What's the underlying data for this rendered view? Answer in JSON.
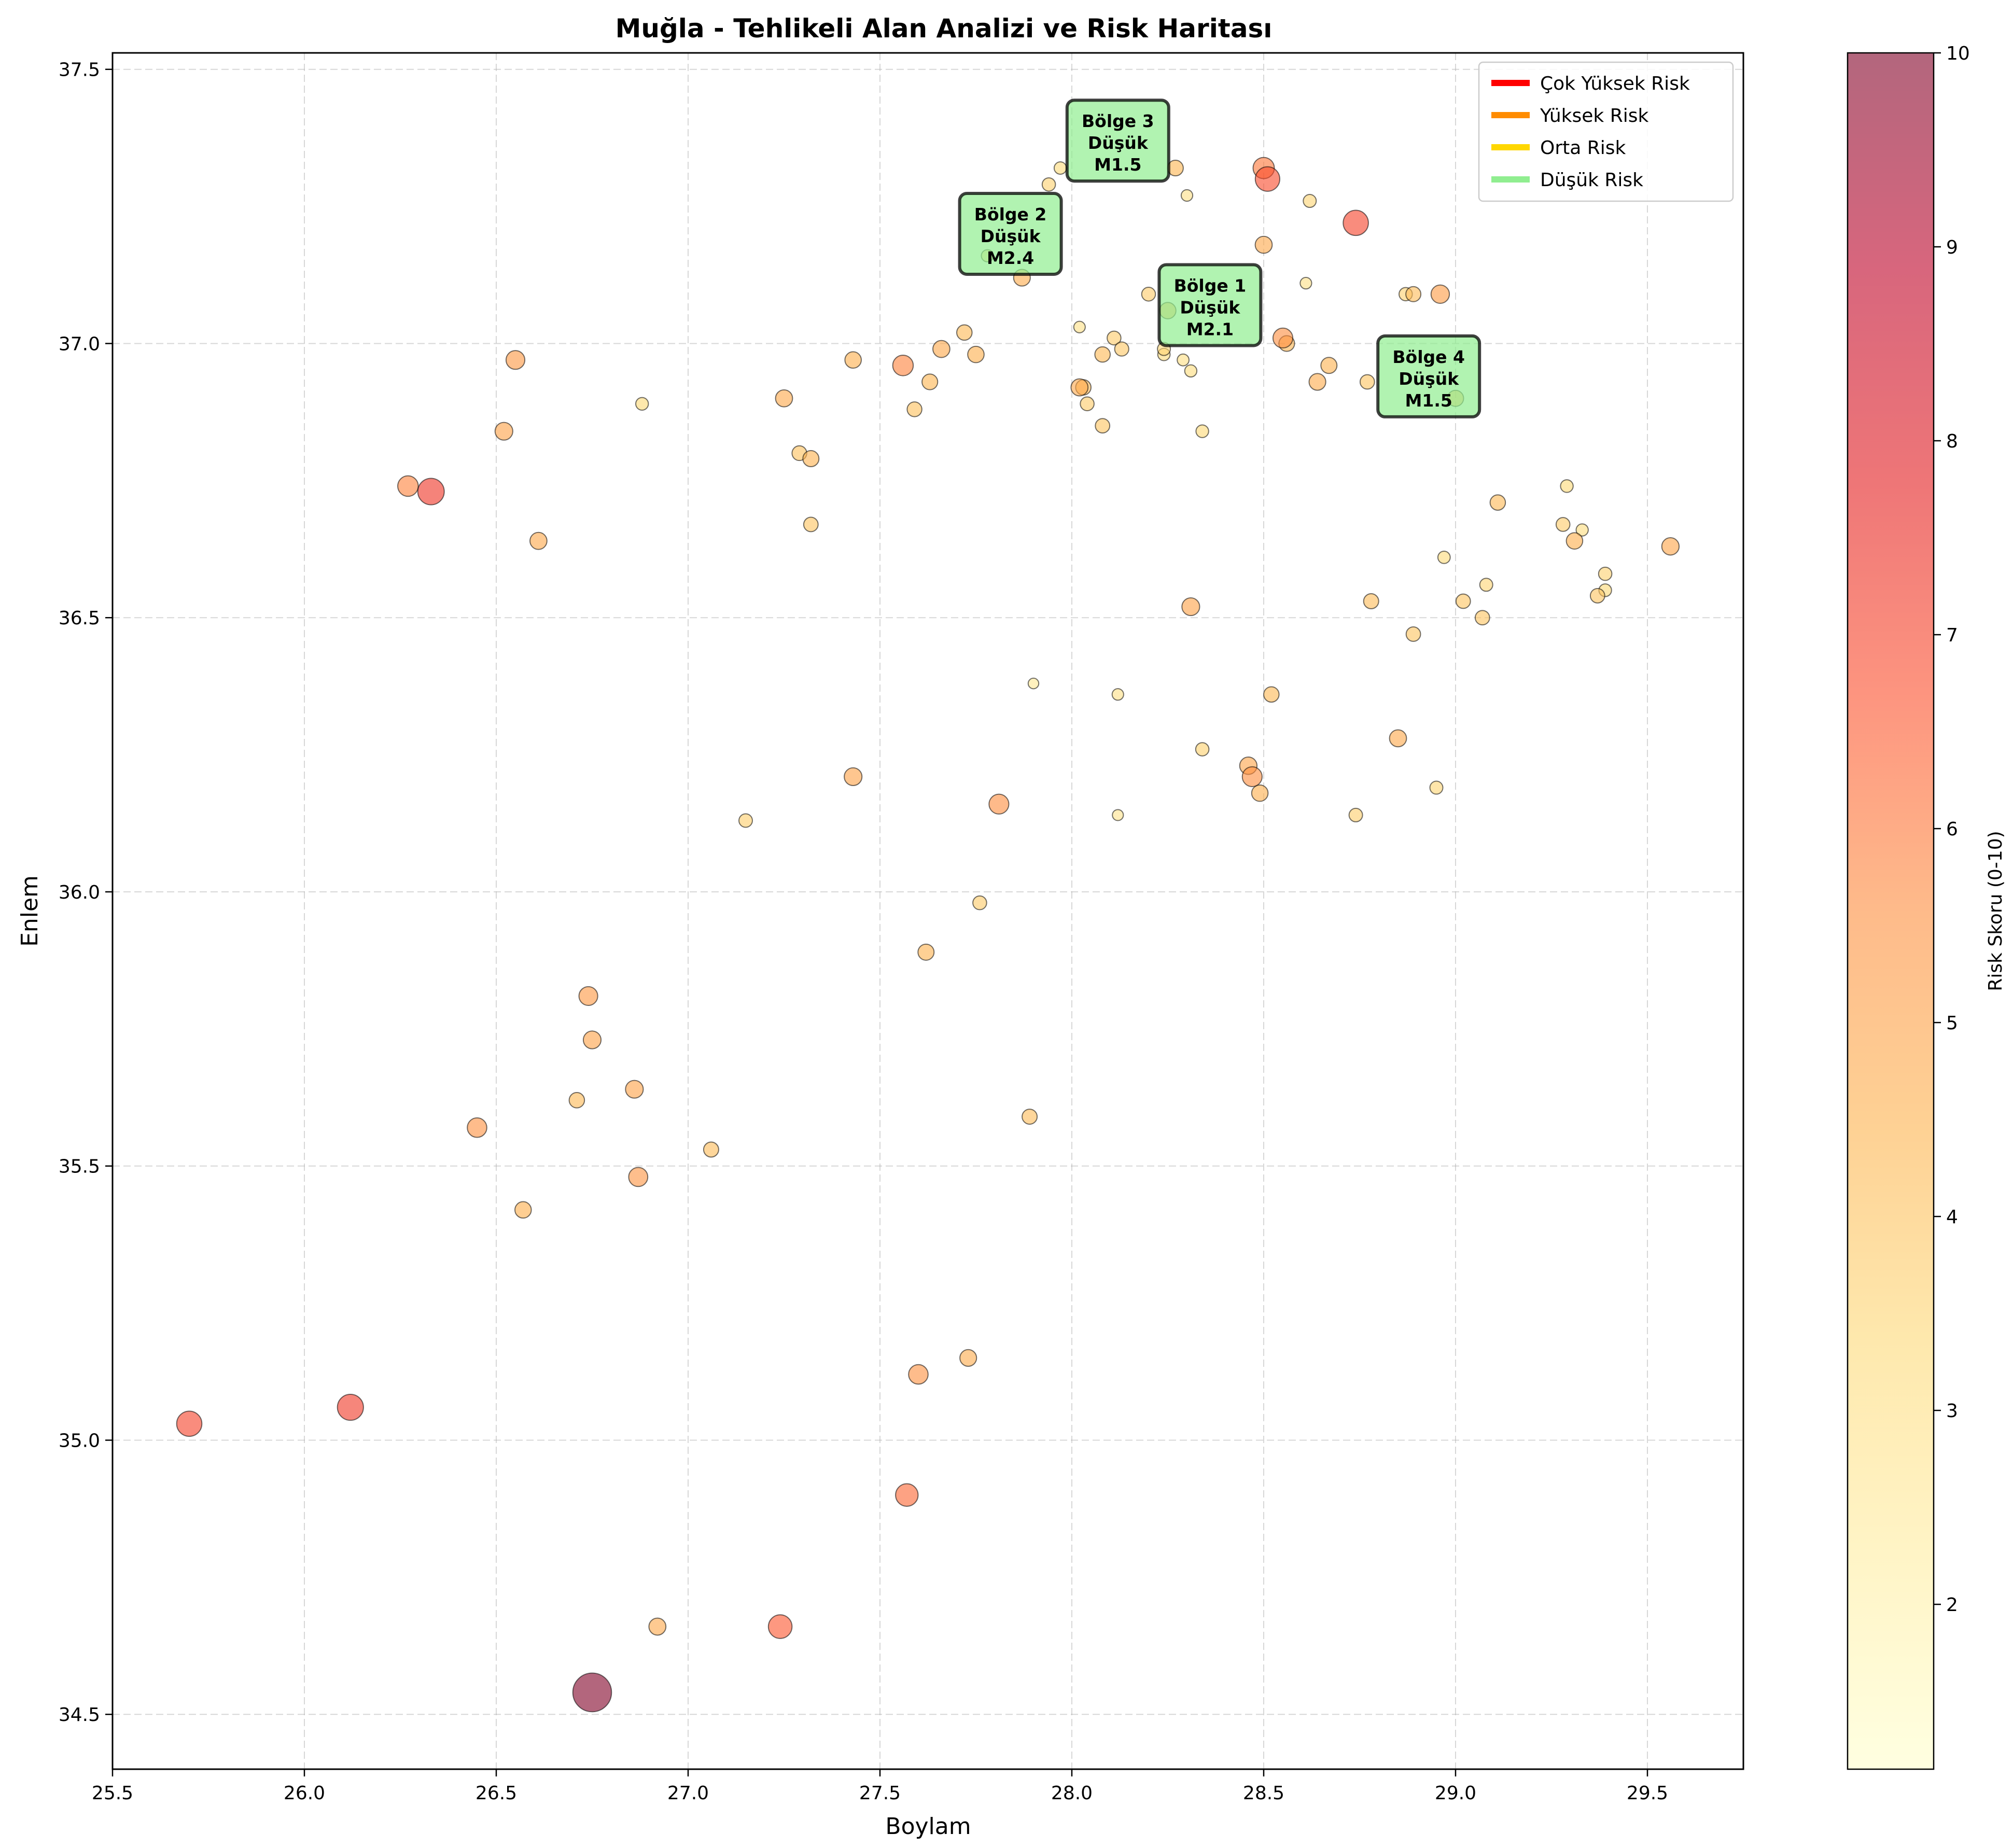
{
  "chart_data": {
    "type": "scatter",
    "title": "Muğla - Tehlikeli Alan Analizi ve Risk Haritası",
    "xlabel": "Boylam",
    "ylabel": "Enlem",
    "xlim": [
      25.5,
      29.75
    ],
    "ylim": [
      34.4,
      37.53
    ],
    "xticks": [
      "25.5",
      "26.0",
      "26.5",
      "27.0",
      "27.5",
      "28.0",
      "28.5",
      "29.0",
      "29.5"
    ],
    "yticks": [
      "34.5",
      "35.0",
      "35.5",
      "36.0",
      "36.5",
      "37.0",
      "37.5"
    ],
    "grid": true,
    "colorbar": {
      "label": "Risk Skoru (0-10)",
      "range": [
        1.15,
        10
      ],
      "ticks": [
        "2",
        "3",
        "4",
        "5",
        "6",
        "7",
        "8",
        "9",
        "10"
      ],
      "colors": [
        "#ffffcc",
        "#ffeda0",
        "#fed976",
        "#feb24c",
        "#fd8d3c",
        "#fc4e2a",
        "#e31a1c",
        "#bd0026",
        "#800026"
      ]
    },
    "legend": {
      "position": "top-right",
      "entries": [
        {
          "label": "Çok Yüksek Risk",
          "color": "#ff0000"
        },
        {
          "label": "Yüksek Risk",
          "color": "#ff8c00"
        },
        {
          "label": "Orta Risk",
          "color": "#ffd700"
        },
        {
          "label": "Düşük Risk",
          "color": "#90ee90"
        }
      ]
    },
    "annotations": [
      {
        "lines": [
          "Bölge 1",
          "Düşük",
          "M2.1"
        ],
        "x": 28.36,
        "y": 37.07
      },
      {
        "lines": [
          "Bölge 2",
          "Düşük",
          "M2.4"
        ],
        "x": 27.84,
        "y": 37.2
      },
      {
        "lines": [
          "Bölge 3",
          "Düşük",
          "M1.5"
        ],
        "x": 28.12,
        "y": 37.37
      },
      {
        "lines": [
          "Bölge 4",
          "Düşük",
          "M1.5"
        ],
        "x": 28.93,
        "y": 36.94
      }
    ],
    "points": [
      {
        "x": 26.75,
        "y": 34.54,
        "risk": 10.0
      },
      {
        "x": 25.7,
        "y": 35.03,
        "risk": 7.0
      },
      {
        "x": 26.12,
        "y": 35.06,
        "risk": 7.2
      },
      {
        "x": 26.33,
        "y": 36.73,
        "risk": 7.3
      },
      {
        "x": 28.51,
        "y": 37.3,
        "risk": 6.8
      },
      {
        "x": 28.74,
        "y": 37.22,
        "risk": 7.0
      },
      {
        "x": 27.24,
        "y": 34.66,
        "risk": 6.6
      },
      {
        "x": 27.57,
        "y": 34.9,
        "risk": 6.3
      },
      {
        "x": 27.6,
        "y": 35.12,
        "risk": 5.5
      },
      {
        "x": 27.73,
        "y": 35.15,
        "risk": 4.7
      },
      {
        "x": 26.92,
        "y": 34.66,
        "risk": 4.8
      },
      {
        "x": 26.74,
        "y": 35.81,
        "risk": 5.3
      },
      {
        "x": 26.75,
        "y": 35.73,
        "risk": 5.0
      },
      {
        "x": 26.86,
        "y": 35.64,
        "risk": 5.0
      },
      {
        "x": 26.71,
        "y": 35.62,
        "risk": 4.3
      },
      {
        "x": 26.45,
        "y": 35.57,
        "risk": 5.5
      },
      {
        "x": 26.87,
        "y": 35.48,
        "risk": 5.4
      },
      {
        "x": 26.57,
        "y": 35.42,
        "risk": 4.6
      },
      {
        "x": 27.06,
        "y": 35.53,
        "risk": 4.2
      },
      {
        "x": 27.89,
        "y": 35.59,
        "risk": 4.2
      },
      {
        "x": 27.62,
        "y": 35.89,
        "risk": 4.5
      },
      {
        "x": 27.76,
        "y": 35.98,
        "risk": 3.8
      },
      {
        "x": 27.81,
        "y": 36.16,
        "risk": 5.6
      },
      {
        "x": 27.43,
        "y": 36.21,
        "risk": 5.0
      },
      {
        "x": 27.15,
        "y": 36.13,
        "risk": 3.7
      },
      {
        "x": 28.12,
        "y": 36.14,
        "risk": 2.8
      },
      {
        "x": 28.12,
        "y": 36.36,
        "risk": 3.0
      },
      {
        "x": 27.9,
        "y": 36.38,
        "risk": 2.6
      },
      {
        "x": 28.34,
        "y": 36.26,
        "risk": 3.6
      },
      {
        "x": 28.47,
        "y": 36.21,
        "risk": 5.6
      },
      {
        "x": 28.46,
        "y": 36.23,
        "risk": 4.9
      },
      {
        "x": 28.49,
        "y": 36.18,
        "risk": 4.6
      },
      {
        "x": 28.52,
        "y": 36.36,
        "risk": 4.3
      },
      {
        "x": 28.74,
        "y": 36.14,
        "risk": 3.7
      },
      {
        "x": 28.85,
        "y": 36.28,
        "risk": 4.8
      },
      {
        "x": 28.95,
        "y": 36.19,
        "risk": 3.5
      },
      {
        "x": 28.31,
        "y": 36.52,
        "risk": 5.0
      },
      {
        "x": 28.78,
        "y": 36.53,
        "risk": 4.2
      },
      {
        "x": 28.89,
        "y": 36.47,
        "risk": 4.0
      },
      {
        "x": 29.02,
        "y": 36.53,
        "risk": 4.0
      },
      {
        "x": 29.07,
        "y": 36.5,
        "risk": 4.0
      },
      {
        "x": 29.08,
        "y": 36.56,
        "risk": 3.5
      },
      {
        "x": 28.97,
        "y": 36.61,
        "risk": 3.3
      },
      {
        "x": 29.11,
        "y": 36.71,
        "risk": 4.3
      },
      {
        "x": 29.28,
        "y": 36.67,
        "risk": 3.8
      },
      {
        "x": 29.31,
        "y": 36.64,
        "risk": 4.6
      },
      {
        "x": 29.33,
        "y": 36.66,
        "risk": 3.2
      },
      {
        "x": 29.29,
        "y": 36.74,
        "risk": 3.4
      },
      {
        "x": 29.37,
        "y": 36.54,
        "risk": 4.0
      },
      {
        "x": 29.39,
        "y": 36.55,
        "risk": 3.4
      },
      {
        "x": 29.39,
        "y": 36.58,
        "risk": 3.6
      },
      {
        "x": 29.56,
        "y": 36.63,
        "risk": 4.9
      },
      {
        "x": 26.27,
        "y": 36.74,
        "risk": 5.8
      },
      {
        "x": 26.52,
        "y": 36.84,
        "risk": 5.0
      },
      {
        "x": 26.55,
        "y": 36.97,
        "risk": 5.3
      },
      {
        "x": 26.61,
        "y": 36.64,
        "risk": 4.8
      },
      {
        "x": 26.88,
        "y": 36.89,
        "risk": 3.4
      },
      {
        "x": 27.25,
        "y": 36.9,
        "risk": 4.8
      },
      {
        "x": 27.29,
        "y": 36.8,
        "risk": 4.1
      },
      {
        "x": 27.32,
        "y": 36.79,
        "risk": 4.5
      },
      {
        "x": 27.32,
        "y": 36.67,
        "risk": 4.0
      },
      {
        "x": 27.43,
        "y": 36.97,
        "risk": 4.6
      },
      {
        "x": 27.56,
        "y": 36.96,
        "risk": 5.8
      },
      {
        "x": 27.59,
        "y": 36.88,
        "risk": 4.1
      },
      {
        "x": 27.63,
        "y": 36.93,
        "risk": 4.4
      },
      {
        "x": 27.66,
        "y": 36.99,
        "risk": 4.8
      },
      {
        "x": 27.72,
        "y": 37.02,
        "risk": 4.3
      },
      {
        "x": 27.75,
        "y": 36.98,
        "risk": 4.6
      },
      {
        "x": 27.87,
        "y": 37.12,
        "risk": 4.7
      },
      {
        "x": 27.78,
        "y": 37.16,
        "risk": 3.2
      },
      {
        "x": 27.94,
        "y": 37.29,
        "risk": 3.6
      },
      {
        "x": 27.97,
        "y": 37.32,
        "risk": 3.3
      },
      {
        "x": 28.02,
        "y": 37.03,
        "risk": 3.0
      },
      {
        "x": 28.02,
        "y": 36.92,
        "risk": 4.8
      },
      {
        "x": 28.03,
        "y": 36.92,
        "risk": 4.3
      },
      {
        "x": 28.04,
        "y": 36.89,
        "risk": 3.8
      },
      {
        "x": 28.08,
        "y": 36.98,
        "risk": 4.3
      },
      {
        "x": 28.08,
        "y": 36.85,
        "risk": 4.0
      },
      {
        "x": 28.11,
        "y": 37.01,
        "risk": 3.8
      },
      {
        "x": 28.13,
        "y": 36.99,
        "risk": 3.9
      },
      {
        "x": 28.2,
        "y": 37.09,
        "risk": 3.8
      },
      {
        "x": 28.24,
        "y": 36.99,
        "risk": 3.5
      },
      {
        "x": 28.24,
        "y": 36.98,
        "risk": 3.3
      },
      {
        "x": 28.25,
        "y": 37.06,
        "risk": 4.6
      },
      {
        "x": 28.27,
        "y": 37.32,
        "risk": 4.4
      },
      {
        "x": 28.29,
        "y": 36.97,
        "risk": 3.1
      },
      {
        "x": 28.3,
        "y": 37.27,
        "risk": 3.0
      },
      {
        "x": 28.31,
        "y": 36.95,
        "risk": 3.2
      },
      {
        "x": 28.34,
        "y": 36.84,
        "risk": 3.4
      },
      {
        "x": 28.5,
        "y": 37.18,
        "risk": 4.8
      },
      {
        "x": 28.5,
        "y": 37.32,
        "risk": 6.0
      },
      {
        "x": 28.55,
        "y": 37.01,
        "risk": 5.6
      },
      {
        "x": 28.56,
        "y": 37.0,
        "risk": 4.4
      },
      {
        "x": 28.61,
        "y": 37.11,
        "risk": 3.0
      },
      {
        "x": 28.62,
        "y": 37.26,
        "risk": 3.5
      },
      {
        "x": 28.64,
        "y": 36.93,
        "risk": 4.7
      },
      {
        "x": 28.67,
        "y": 36.96,
        "risk": 4.5
      },
      {
        "x": 28.77,
        "y": 36.93,
        "risk": 4.0
      },
      {
        "x": 28.87,
        "y": 37.09,
        "risk": 3.6
      },
      {
        "x": 28.89,
        "y": 37.09,
        "risk": 4.2
      },
      {
        "x": 28.96,
        "y": 37.09,
        "risk": 5.2
      },
      {
        "x": 29.0,
        "y": 36.9,
        "risk": 4.5
      }
    ]
  }
}
